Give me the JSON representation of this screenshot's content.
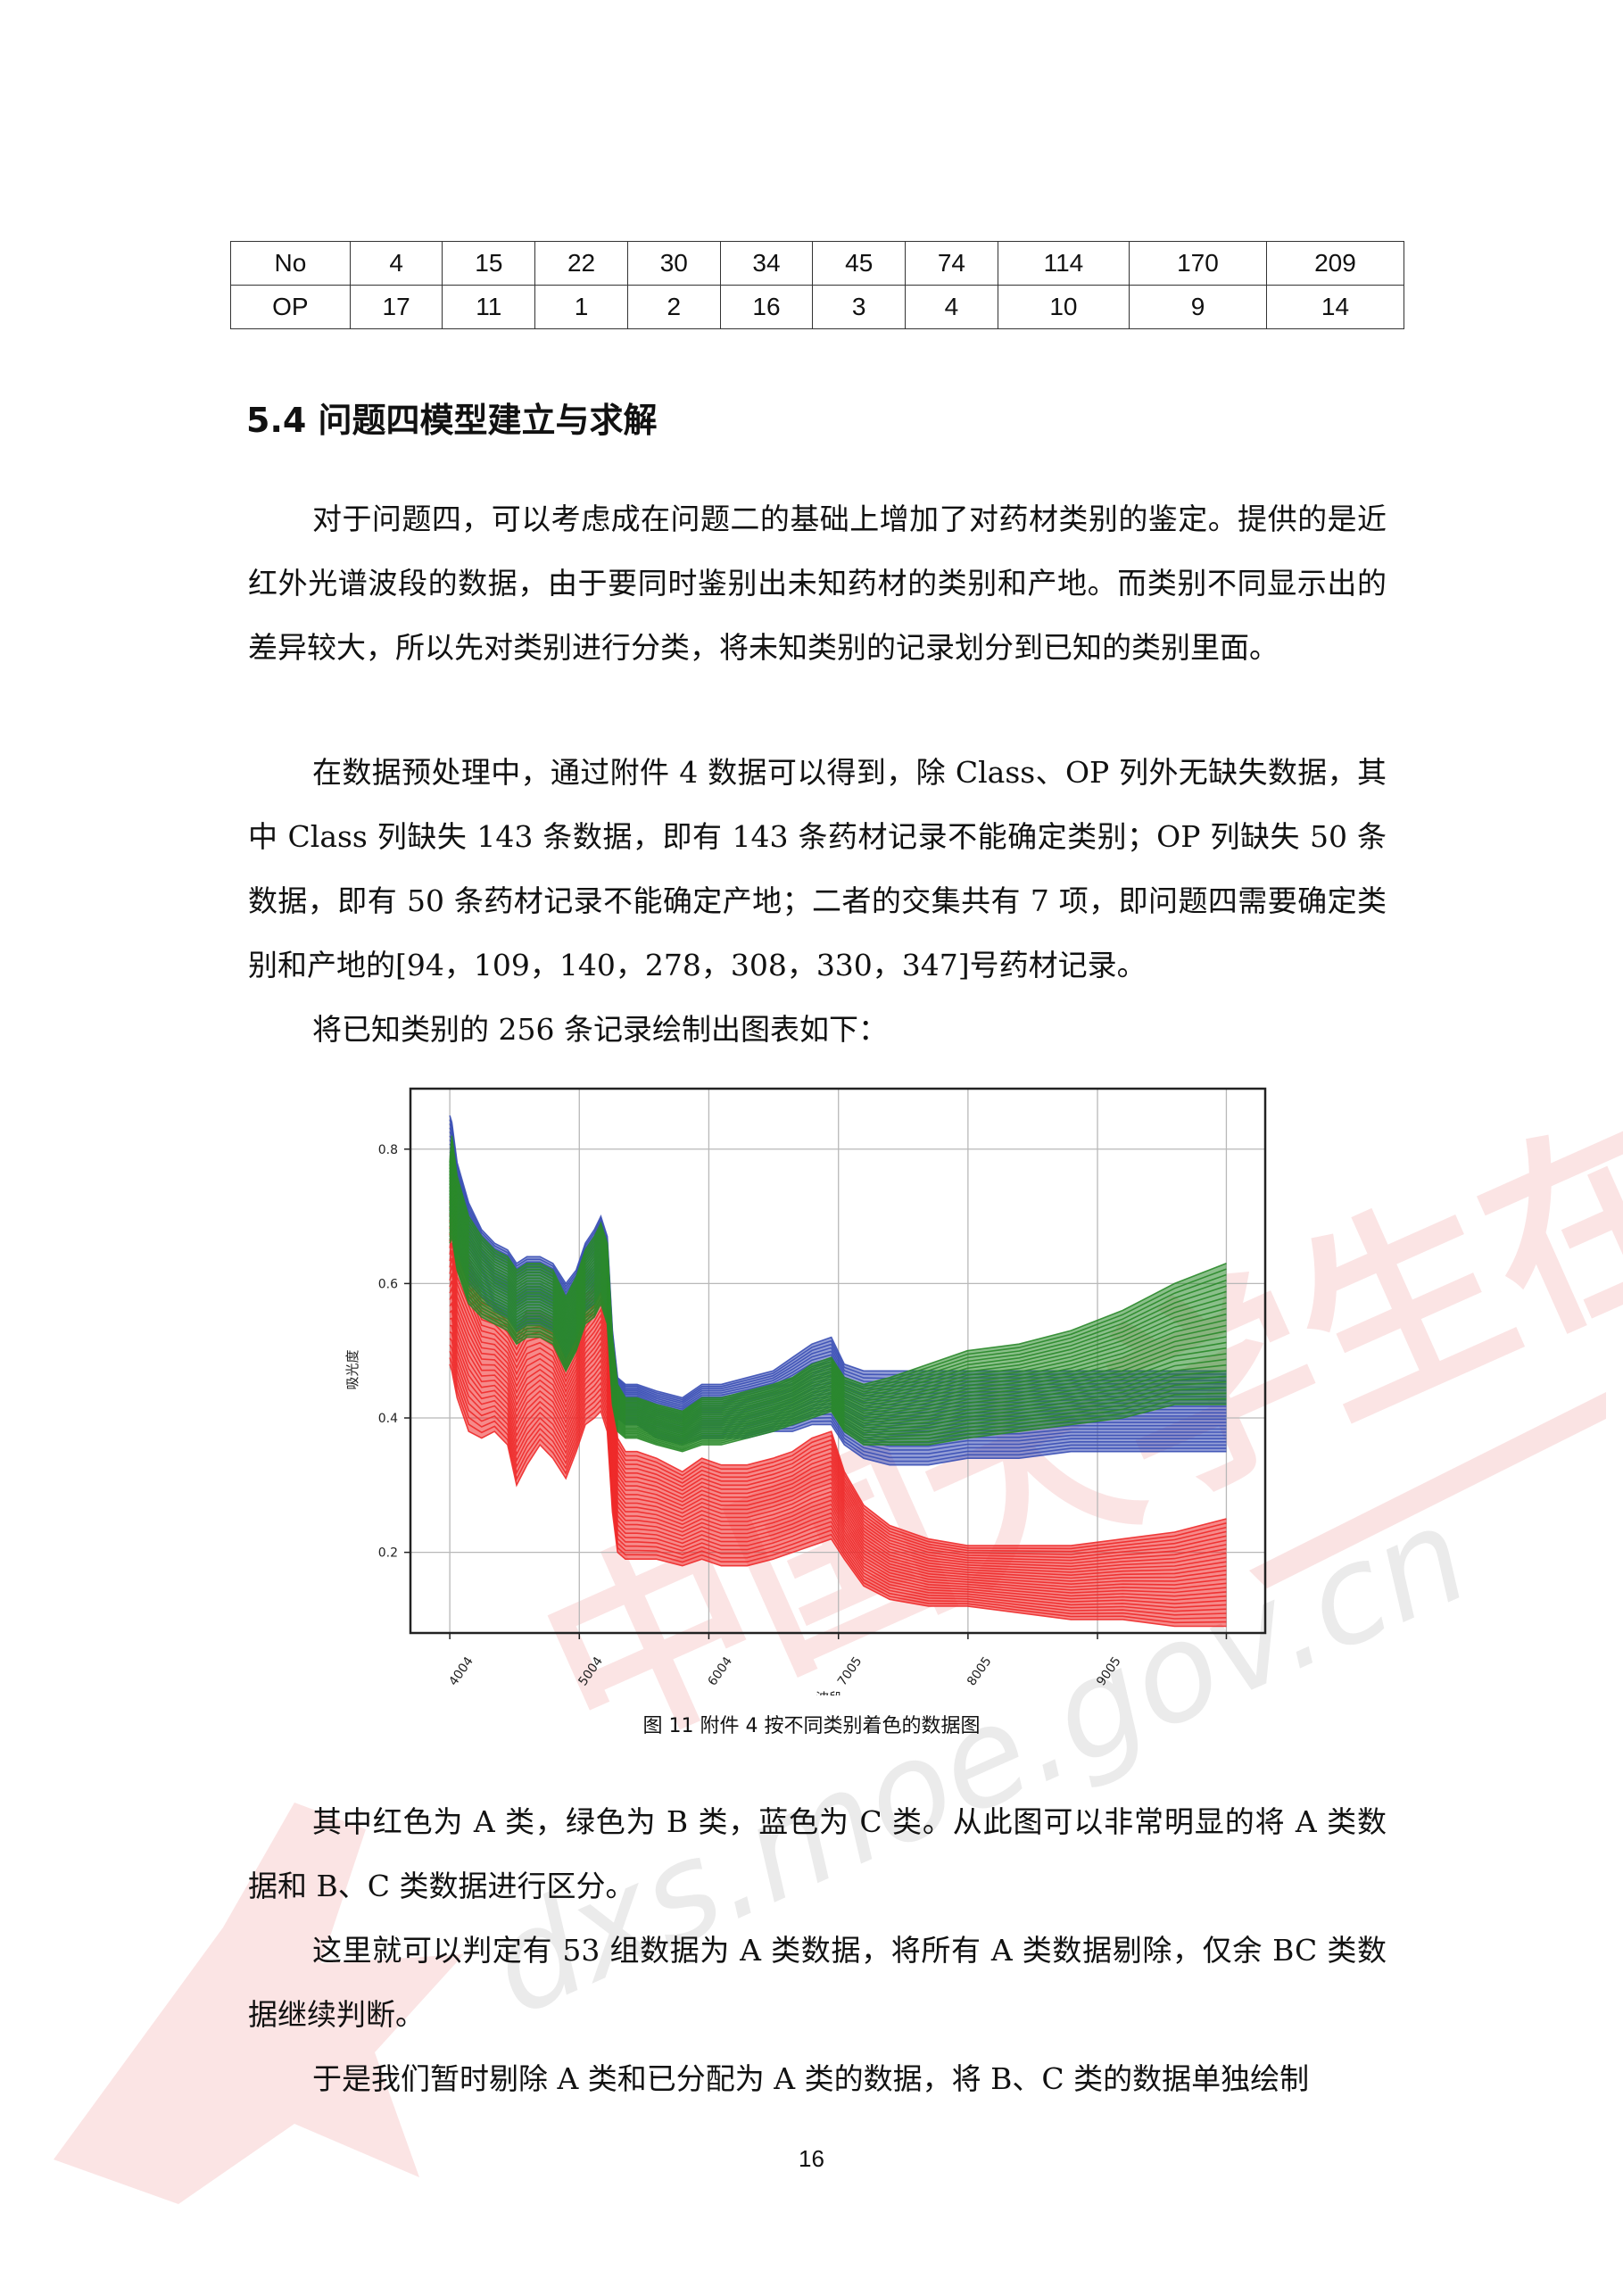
{
  "table": {
    "rows": [
      [
        "No",
        "4",
        "15",
        "22",
        "30",
        "34",
        "45",
        "74",
        "114",
        "170",
        "209"
      ],
      [
        "OP",
        "17",
        "11",
        "1",
        "2",
        "16",
        "3",
        "4",
        "10",
        "9",
        "14"
      ]
    ]
  },
  "section": {
    "heading": "5.4 问题四模型建立与求解"
  },
  "paragraphs": [
    "对于问题四，可以考虑成在问题二的基础上增加了对药材类别的鉴定。提供的是近红外光谱波段的数据，由于要同时鉴别出未知药材的类别和产地。而类别不同显示出的差异较大，所以先对类别进行分类，将未知类别的记录划分到已知的类别里面。",
    "在数据预处理中，通过附件 4 数据可以得到，除 Class、OP 列外无缺失数据，其中 Class 列缺失 143 条数据，即有 143 条药材记录不能确定类别；OP 列缺失 50 条数据，即有 50 条药材记录不能确定产地；二者的交集共有 7 项，即问题四需要确定类别和产地的[94，109，140，278，308，330，347]号药材记录。",
    "将已知类别的 256 条记录绘制出图表如下：",
    "其中红色为 A 类，绿色为 B 类，蓝色为 C 类。从此图可以非常明显的将 A 类数据和 B、C 类数据进行区分。",
    "这里就可以判定有 53 组数据为 A 类数据，将所有 A 类数据剔除，仅余 BC 类数据继续判断。",
    "于是我们暂时剔除 A 类和已分配为 A 类的数据，将 B、C 类的数据单独绘制"
  ],
  "figure_caption": "图 11  附件 4 按不同类别着色的数据图",
  "page_number": "16",
  "watermark": {
    "text": "中国大学生在线",
    "url": "dxs.moe.gov.cn"
  },
  "chart_data": {
    "type": "line",
    "title": "",
    "xlabel": "波段",
    "ylabel": "吸光度",
    "x_ticks": [
      "4004",
      "5004",
      "6004",
      "7005",
      "8005",
      "9005"
    ],
    "x_tick_values": [
      4004,
      5004,
      6004,
      7005,
      8005,
      9005
    ],
    "y_ticks": [
      "0.2",
      "0.4",
      "0.6",
      "0.8"
    ],
    "y_tick_values": [
      0.2,
      0.4,
      0.6,
      0.8
    ],
    "xlim": [
      3700,
      10300
    ],
    "ylim": [
      0.08,
      0.89
    ],
    "grid": true,
    "x": [
      4004,
      4020,
      4060,
      4150,
      4250,
      4350,
      4450,
      4520,
      4600,
      4700,
      4800,
      4900,
      4980,
      5050,
      5120,
      5170,
      5220,
      5260,
      5300,
      5360,
      5450,
      5600,
      5800,
      5950,
      6100,
      6300,
      6500,
      6650,
      6800,
      6950,
      7050,
      7200,
      7400,
      7700,
      8000,
      8400,
      8800,
      9200,
      9600,
      10000
    ],
    "series": [
      {
        "name": "A",
        "color": "#ee2a2a",
        "upper": [
          0.72,
          0.75,
          0.68,
          0.64,
          0.58,
          0.57,
          0.55,
          0.53,
          0.56,
          0.56,
          0.55,
          0.5,
          0.53,
          0.58,
          0.6,
          0.62,
          0.58,
          0.45,
          0.37,
          0.35,
          0.35,
          0.34,
          0.32,
          0.34,
          0.33,
          0.33,
          0.34,
          0.35,
          0.37,
          0.38,
          0.32,
          0.27,
          0.24,
          0.22,
          0.21,
          0.21,
          0.21,
          0.22,
          0.23,
          0.25
        ],
        "lower": [
          0.48,
          0.47,
          0.43,
          0.38,
          0.37,
          0.38,
          0.36,
          0.3,
          0.33,
          0.36,
          0.34,
          0.31,
          0.35,
          0.39,
          0.4,
          0.41,
          0.38,
          0.26,
          0.2,
          0.19,
          0.19,
          0.19,
          0.18,
          0.19,
          0.18,
          0.18,
          0.19,
          0.2,
          0.21,
          0.22,
          0.19,
          0.15,
          0.13,
          0.12,
          0.12,
          0.11,
          0.1,
          0.1,
          0.09,
          0.09
        ]
      },
      {
        "name": "B",
        "color": "#2a8a2a",
        "upper": [
          0.78,
          0.82,
          0.76,
          0.7,
          0.67,
          0.65,
          0.64,
          0.62,
          0.63,
          0.63,
          0.62,
          0.58,
          0.61,
          0.65,
          0.67,
          0.69,
          0.66,
          0.52,
          0.45,
          0.43,
          0.43,
          0.42,
          0.41,
          0.43,
          0.43,
          0.44,
          0.45,
          0.46,
          0.48,
          0.49,
          0.46,
          0.45,
          0.46,
          0.48,
          0.5,
          0.51,
          0.53,
          0.56,
          0.6,
          0.63
        ],
        "lower": [
          0.66,
          0.67,
          0.62,
          0.57,
          0.55,
          0.54,
          0.53,
          0.51,
          0.52,
          0.52,
          0.51,
          0.47,
          0.5,
          0.54,
          0.55,
          0.57,
          0.54,
          0.42,
          0.38,
          0.37,
          0.37,
          0.36,
          0.35,
          0.36,
          0.36,
          0.37,
          0.38,
          0.39,
          0.4,
          0.41,
          0.38,
          0.36,
          0.36,
          0.36,
          0.37,
          0.38,
          0.39,
          0.4,
          0.42,
          0.42
        ]
      },
      {
        "name": "C",
        "color": "#3a4fb5",
        "upper": [
          0.85,
          0.84,
          0.78,
          0.72,
          0.68,
          0.66,
          0.65,
          0.63,
          0.64,
          0.64,
          0.63,
          0.6,
          0.62,
          0.66,
          0.68,
          0.7,
          0.67,
          0.53,
          0.46,
          0.45,
          0.45,
          0.44,
          0.43,
          0.45,
          0.45,
          0.46,
          0.47,
          0.49,
          0.51,
          0.52,
          0.48,
          0.47,
          0.47,
          0.47,
          0.47,
          0.47,
          0.47,
          0.47,
          0.47,
          0.47
        ],
        "lower": [
          0.7,
          0.71,
          0.65,
          0.6,
          0.58,
          0.56,
          0.55,
          0.53,
          0.54,
          0.54,
          0.53,
          0.49,
          0.52,
          0.56,
          0.57,
          0.59,
          0.56,
          0.44,
          0.4,
          0.39,
          0.39,
          0.37,
          0.36,
          0.37,
          0.37,
          0.37,
          0.38,
          0.38,
          0.39,
          0.39,
          0.36,
          0.34,
          0.33,
          0.33,
          0.34,
          0.34,
          0.35,
          0.35,
          0.35,
          0.35
        ]
      }
    ]
  }
}
